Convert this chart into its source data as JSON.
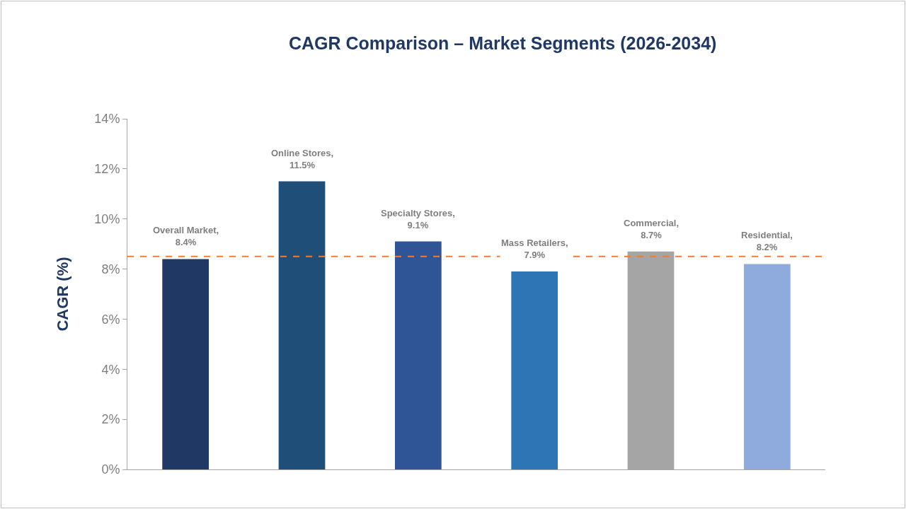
{
  "chart_data": {
    "type": "bar",
    "title": "CAGR Comparison – Market Segments (2026-2034)",
    "ylabel": "CAGR (%)",
    "categories": [
      null,
      null,
      null,
      null,
      null,
      null
    ],
    "values": [
      8.4,
      11.5,
      9.1,
      7.9,
      8.7,
      8.2
    ],
    "colors": [
      "#1f3864",
      "#1f4e79",
      "#2f5597",
      "#2e75b6",
      "#a5a5a5",
      "#8faadc"
    ],
    "value_labels": [
      "Overall Market,\n8.4%",
      "Online Stores,\n11.5%",
      "Specialty Stores,\n9.1%",
      "Mass Retailers,\n7.9%",
      "Commercial,\n8.7%",
      "Residential,\n8.2%"
    ],
    "ylim": [
      0,
      14
    ],
    "yticks": [
      {
        "value": 0,
        "label": "0%"
      },
      {
        "value": 2,
        "label": "2%"
      },
      {
        "value": 4,
        "label": "4%"
      },
      {
        "value": 6,
        "label": "6%"
      },
      {
        "value": 8,
        "label": "8%"
      },
      {
        "value": 10,
        "label": "10%"
      },
      {
        "value": 12,
        "label": "12%"
      },
      {
        "value": 14,
        "label": "14%"
      }
    ],
    "ref_lines": [
      {
        "axis": "y",
        "value": 8.5,
        "color": "#ed7d31",
        "line_style": "dashed"
      }
    ],
    "grid": false,
    "tick_labels": "y"
  }
}
